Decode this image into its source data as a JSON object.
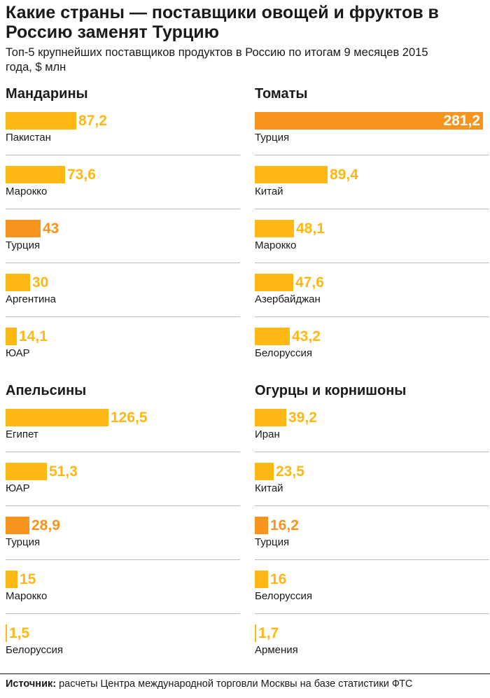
{
  "title": "Какие страны — поставщики овощей и фруктов в Россию заменят Турцию",
  "subtitle": "Топ-5 крупнейших поставщиков продуктов в Россию по итогам 9 месяцев 2015 года, $ млн",
  "source": {
    "label": "Источник:",
    "text": "расчеты Центра международной торговли Москвы на базе статистики ФТС"
  },
  "colors": {
    "bar": "#FDB813",
    "bar_highlight": "#F7941D",
    "separator": "#BDBDBD",
    "text": "#1A1A1A"
  },
  "chart_data": [
    {
      "type": "bar",
      "title": "Мандарины",
      "orientation": "horizontal",
      "categories": [
        "Пакистан",
        "Марокко",
        "Турция",
        "Аргентина",
        "ЮАР"
      ],
      "values": [
        87.2,
        73.6,
        43,
        30,
        14.1
      ],
      "value_labels": [
        "87,2",
        "73,6",
        "43",
        "30",
        "14,1"
      ],
      "highlight": "Турция"
    },
    {
      "type": "bar",
      "title": "Томаты",
      "orientation": "horizontal",
      "categories": [
        "Турция",
        "Китай",
        "Марокко",
        "Азербайджан",
        "Белоруссия"
      ],
      "values": [
        281.2,
        89.4,
        48.1,
        47.6,
        43.2
      ],
      "value_labels": [
        "281,2",
        "89,4",
        "48,1",
        "47,6",
        "43,2"
      ],
      "highlight": "Турция"
    },
    {
      "type": "bar",
      "title": "Апельсины",
      "orientation": "horizontal",
      "categories": [
        "Египет",
        "ЮАР",
        "Турция",
        "Марокко",
        "Белоруссия"
      ],
      "values": [
        126.5,
        51.3,
        28.9,
        15,
        1.5
      ],
      "value_labels": [
        "126,5",
        "51,3",
        "28,9",
        "15",
        "1,5"
      ],
      "highlight": "Турция"
    },
    {
      "type": "bar",
      "title": "Огурцы и корнишоны",
      "orientation": "horizontal",
      "categories": [
        "Иран",
        "Китай",
        "Турция",
        "Белоруссия",
        "Армения"
      ],
      "values": [
        39.2,
        23.5,
        16.2,
        16,
        1.7
      ],
      "value_labels": [
        "39,2",
        "23,5",
        "16,2",
        "16",
        "1,7"
      ],
      "highlight": "Турция"
    }
  ]
}
